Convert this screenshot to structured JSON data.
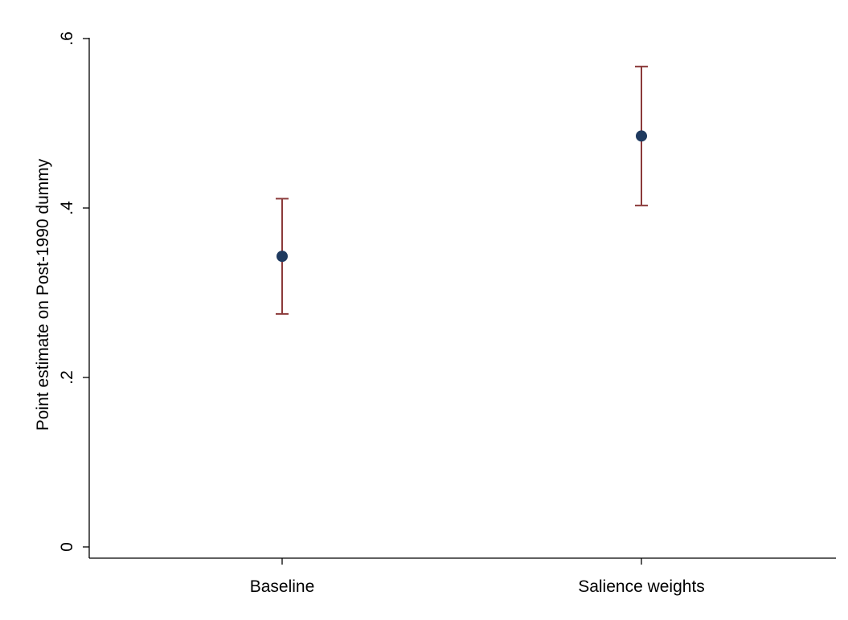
{
  "chart_data": {
    "type": "scatter",
    "title": "",
    "xlabel": "",
    "ylabel": "Point estimate on Post-1990 dummy",
    "categories": [
      "Baseline",
      "Salience weights"
    ],
    "series": [
      {
        "estimates": [
          0.343,
          0.485
        ],
        "ci_low": [
          0.275,
          0.403
        ],
        "ci_high": [
          0.411,
          0.567
        ]
      }
    ],
    "ylim": [
      0,
      0.6
    ],
    "yticks": [
      0,
      0.2,
      0.4,
      0.6
    ],
    "ytick_labels": [
      "0",
      ".2",
      ".4",
      ".6"
    ],
    "grid": false,
    "colors": {
      "marker": "#1f3a5f",
      "error_bar": "#8b3a3a",
      "axis": "#000000"
    }
  }
}
